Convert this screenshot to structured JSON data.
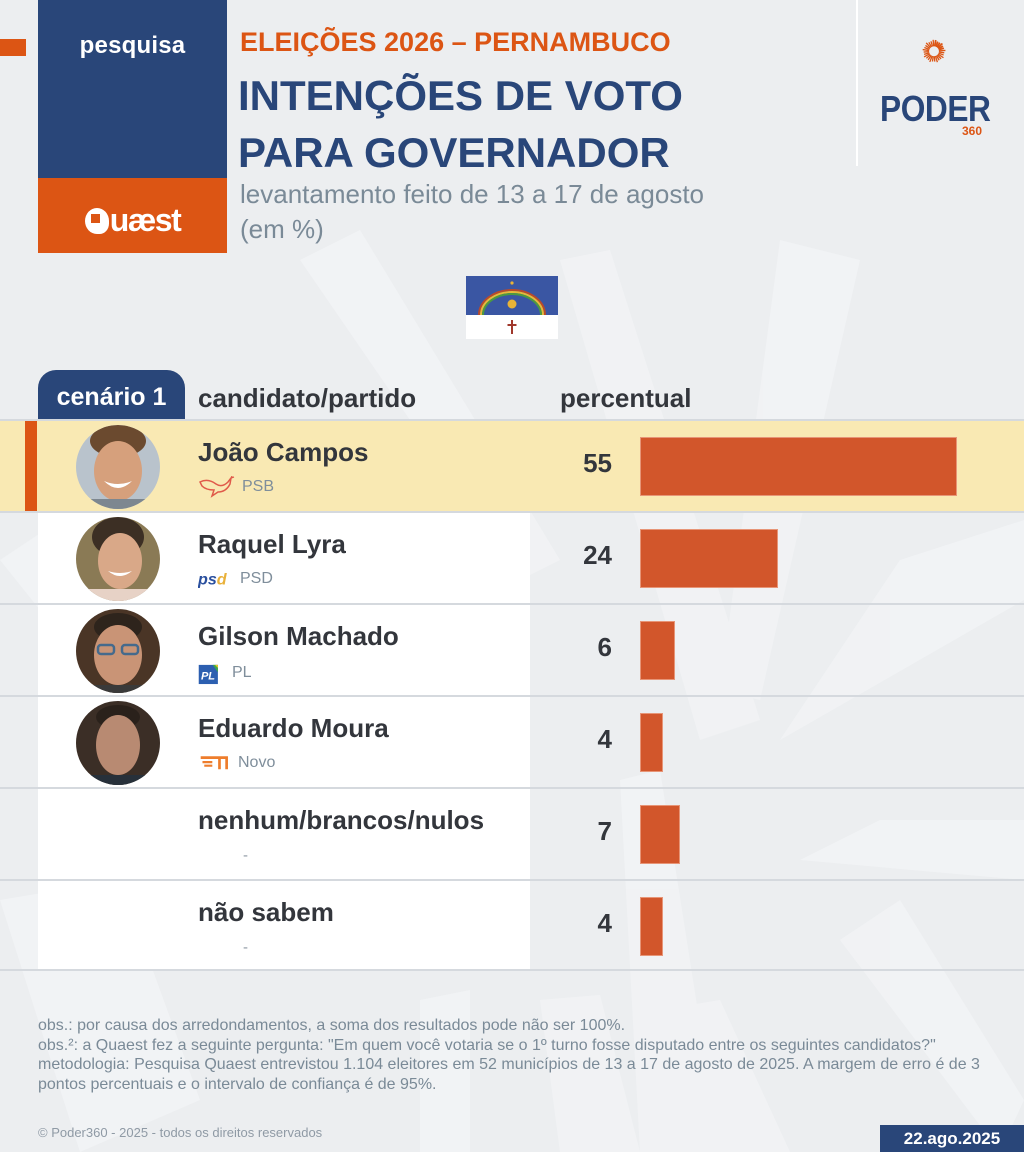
{
  "header": {
    "brand_label": "pesquisa",
    "pollster": "Quaest",
    "kicker": "ELEIÇÕES 2026 – PERNAMBUCO",
    "title_line1": "INTENÇÕES DE VOTO",
    "title_line2": "PARA GOVERNADOR",
    "subtitle_line1": "levantamento feito de 13 a 17 de agosto",
    "subtitle_line2": "(em %)",
    "publisher_word": "PODER",
    "publisher_number": "360",
    "flag_icon": "pernambuco-flag-icon"
  },
  "colors": {
    "navy": "#294679",
    "orange": "#dc5514",
    "bar": "#d2562b",
    "highlight_row": "#f9e9b3",
    "background": "#eceef0"
  },
  "table": {
    "scenario_label": "cenário 1",
    "col_candidate": "candidato/partido",
    "col_percent": "percentual"
  },
  "chart_data": {
    "type": "bar",
    "orientation": "horizontal",
    "title": "INTENÇÕES DE VOTO PARA GOVERNADOR",
    "subtitle": "levantamento feito de 13 a 17 de agosto (em %)",
    "xlabel": "percentual",
    "ylabel": "candidato/partido",
    "xlim": [
      0,
      55
    ],
    "grid": false,
    "legend": "none",
    "categories": [
      "João Campos",
      "Raquel Lyra",
      "Gilson Machado",
      "Eduardo Moura",
      "nenhum/brancos/nulos",
      "não sabem"
    ],
    "values": [
      55,
      24,
      6,
      4,
      7,
      4
    ],
    "rows": [
      {
        "name": "João Campos",
        "party": "PSB",
        "party_icon": "psb-dove-icon",
        "value": 55,
        "highlight": true,
        "photo": "joao-campos-photo"
      },
      {
        "name": "Raquel Lyra",
        "party": "PSD",
        "party_icon": "psd-logo-icon",
        "value": 24,
        "highlight": false,
        "photo": "raquel-lyra-photo"
      },
      {
        "name": "Gilson Machado",
        "party": "PL",
        "party_icon": "pl-logo-icon",
        "value": 6,
        "highlight": false,
        "photo": "gilson-machado-photo"
      },
      {
        "name": "Eduardo Moura",
        "party": "Novo",
        "party_icon": "novo-logo-icon",
        "value": 4,
        "highlight": false,
        "photo": "eduardo-moura-photo"
      },
      {
        "name": "nenhum/brancos/nulos",
        "party": "-",
        "party_icon": null,
        "value": 7,
        "highlight": false,
        "photo": null
      },
      {
        "name": "não sabem",
        "party": "-",
        "party_icon": null,
        "value": 4,
        "highlight": false,
        "photo": null
      }
    ]
  },
  "footer": {
    "note1": "obs.: por causa dos arredondamentos, a soma dos resultados pode não ser 100%.",
    "note2": "obs.²: a Quaest fez a seguinte pergunta: \"Em quem você votaria se o 1º turno fosse disputado entre os seguintes candidatos?\"",
    "methodology": "metodologia: Pesquisa Quaest entrevistou 1.104 eleitores em 52 municípios de 13 a 17 de agosto de 2025. A margem de erro é de 3 pontos percentuais e o intervalo de confiança é de 95%.",
    "copyright": "© Poder360 - 2025 - todos os direitos reservados",
    "date": "22.ago.2025"
  }
}
